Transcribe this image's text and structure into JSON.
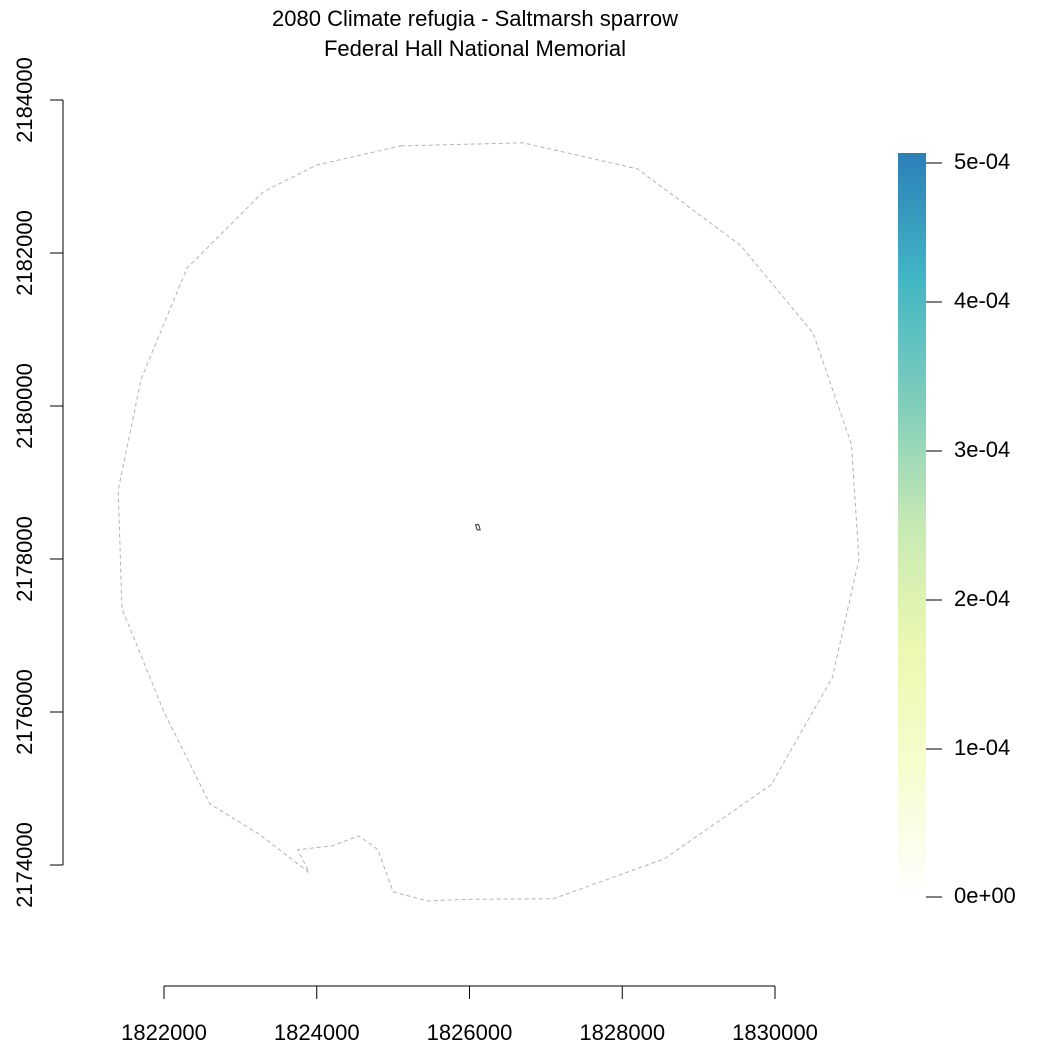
{
  "title": "2080 Climate refugia - Saltmarsh sparrow",
  "subtitle": "Federal Hall National Memorial",
  "x_axis": {
    "ticks": [
      1822000,
      1824000,
      1826000,
      1828000,
      1830000
    ],
    "tick_labels": [
      "1822000",
      "1824000",
      "1826000",
      "1828000",
      "1830000"
    ]
  },
  "y_axis": {
    "ticks": [
      2174000,
      2176000,
      2178000,
      2180000,
      2182000,
      2184000
    ],
    "tick_labels": [
      "2174000",
      "2176000",
      "2178000",
      "2180000",
      "2182000",
      "2184000"
    ]
  },
  "legend": {
    "ticks": [
      0,
      0.0001,
      0.0002,
      0.0003,
      0.0004,
      0.0005
    ],
    "tick_labels": [
      "0e+00",
      "1e-04",
      "2e-04",
      "3e-04",
      "4e-04",
      "5e-04"
    ],
    "range": [
      0,
      0.0005
    ],
    "colors": [
      "#ffffff",
      "#f7fcd0",
      "#edf8b1",
      "#c7e9b4",
      "#7fcdbb",
      "#41b6c4",
      "#2c7fb8"
    ]
  },
  "map": {
    "boundary_style": "dashed gray",
    "boundary": [
      [
        1825100,
        2183400
      ],
      [
        1826700,
        2183440
      ],
      [
        1828200,
        2183100
      ],
      [
        1829550,
        2182100
      ],
      [
        1830500,
        2180950
      ],
      [
        1831000,
        2179500
      ],
      [
        1831100,
        2178000
      ],
      [
        1830750,
        2176450
      ],
      [
        1829950,
        2175050
      ],
      [
        1828550,
        2174080
      ],
      [
        1827100,
        2173560
      ],
      [
        1825900,
        2173550
      ],
      [
        1825450,
        2173530
      ],
      [
        1825000,
        2173650
      ],
      [
        1824800,
        2174200
      ],
      [
        1824550,
        2174380
      ],
      [
        1824200,
        2174250
      ],
      [
        1823750,
        2174200
      ],
      [
        1823900,
        2173900
      ],
      [
        1823250,
        2174400
      ],
      [
        1822600,
        2174800
      ],
      [
        1822000,
        2176000
      ],
      [
        1821450,
        2177350
      ],
      [
        1821400,
        2178900
      ],
      [
        1821700,
        2180350
      ],
      [
        1822300,
        2181800
      ],
      [
        1823300,
        2182800
      ],
      [
        1824000,
        2183150
      ],
      [
        1825100,
        2183400
      ]
    ],
    "site_polygon": [
      [
        1826080,
        2178450
      ],
      [
        1826120,
        2178450
      ],
      [
        1826140,
        2178380
      ],
      [
        1826100,
        2178380
      ],
      [
        1826080,
        2178450
      ]
    ]
  }
}
